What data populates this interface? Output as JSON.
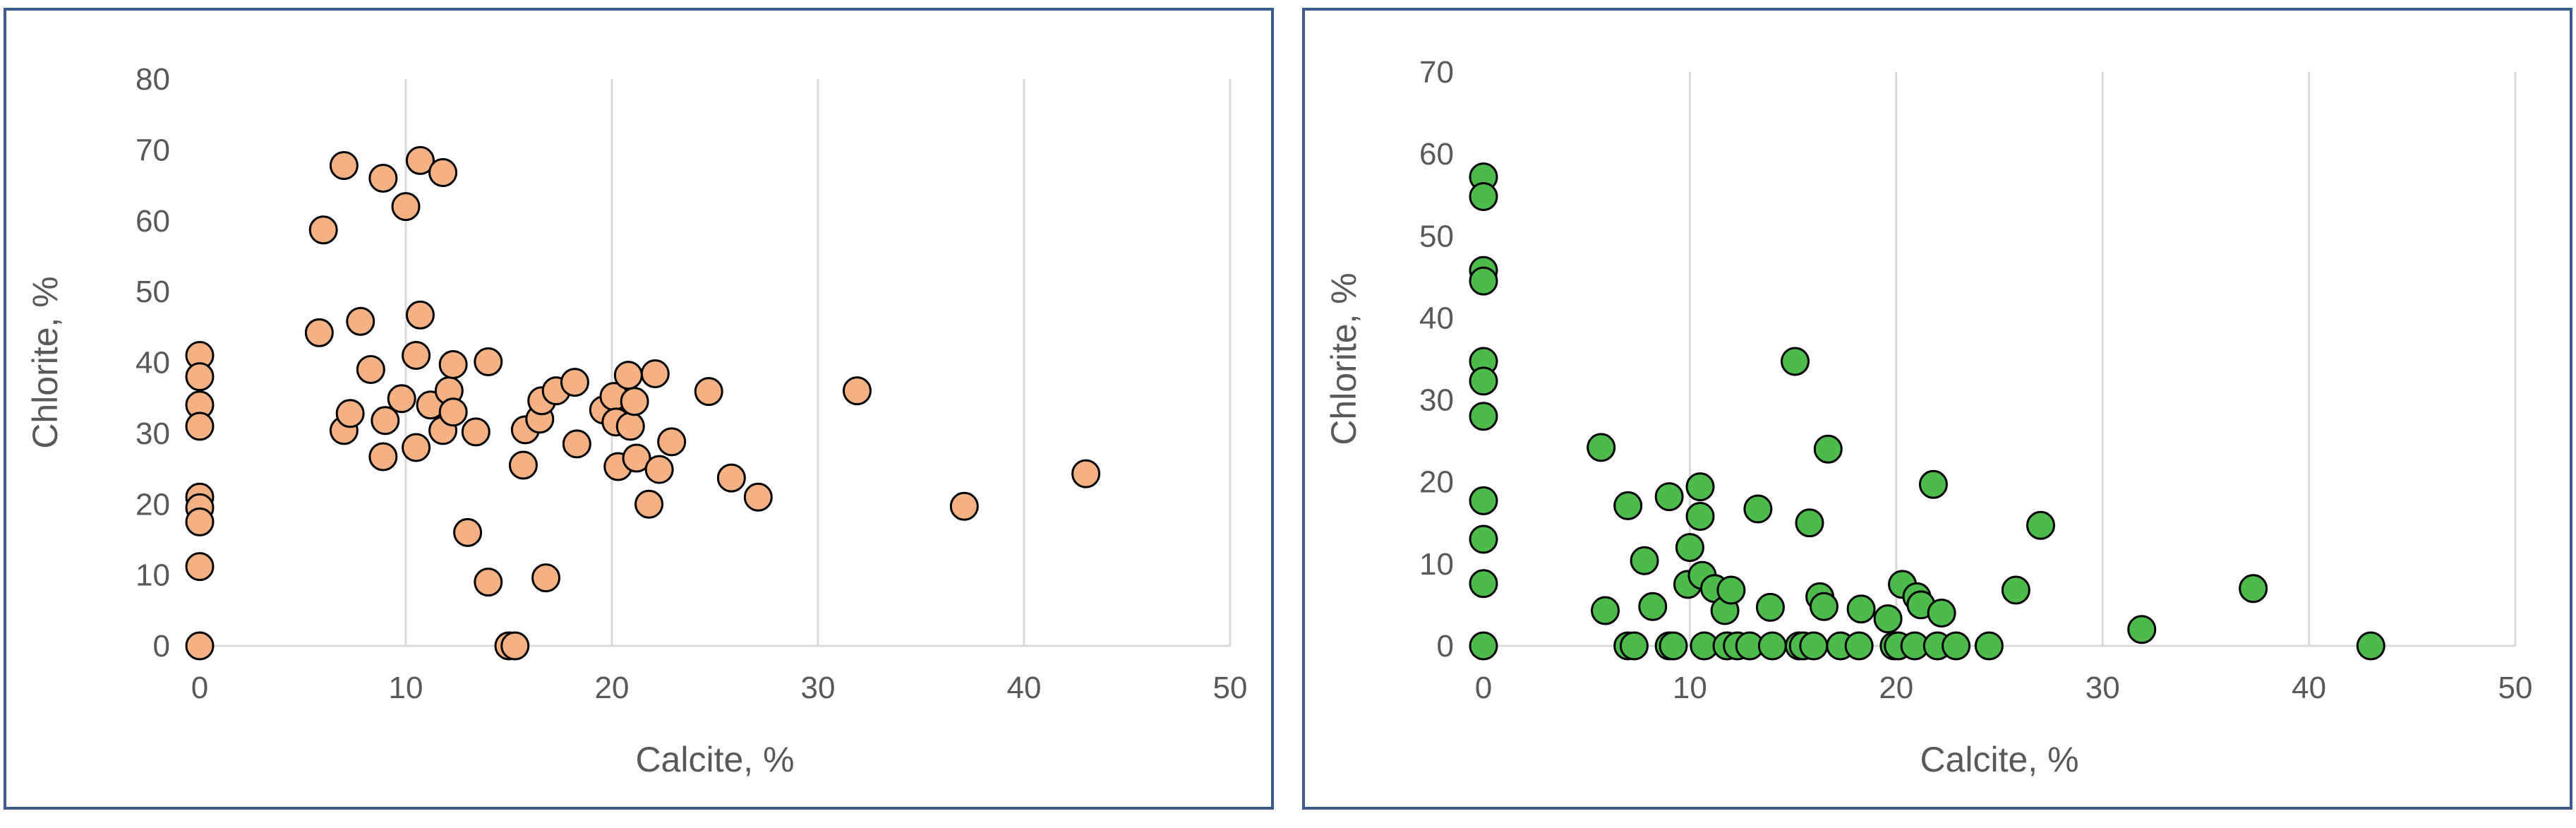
{
  "chart_data": [
    {
      "type": "scatter",
      "xlabel": "Calcite, %",
      "ylabel": "Chlorite, %",
      "xlim": [
        0,
        50
      ],
      "ylim": [
        0,
        80
      ],
      "xticks": [
        0,
        10,
        20,
        30,
        40,
        50
      ],
      "yticks": [
        0,
        10,
        20,
        30,
        40,
        50,
        60,
        70,
        80
      ],
      "grid": "vertical",
      "marker_color": "#f4b183",
      "series": [
        {
          "points": [
            [
              0,
              41
            ],
            [
              0,
              38
            ],
            [
              0,
              34
            ],
            [
              0,
              31
            ],
            [
              0,
              21
            ],
            [
              0,
              19.5
            ],
            [
              0,
              17.5
            ],
            [
              0,
              11.2
            ],
            [
              0,
              0
            ],
            [
              5.8,
              44.2
            ],
            [
              6,
              58.7
            ],
            [
              7,
              67.8
            ],
            [
              7,
              30.4
            ],
            [
              7.3,
              32.8
            ],
            [
              7.8,
              45.8
            ],
            [
              8.3,
              39
            ],
            [
              8.9,
              66
            ],
            [
              8.9,
              26.7
            ],
            [
              9,
              31.8
            ],
            [
              9.8,
              34.9
            ],
            [
              10,
              62
            ],
            [
              10.5,
              28
            ],
            [
              10.5,
              41
            ],
            [
              10.7,
              68.5
            ],
            [
              10.7,
              46.7
            ],
            [
              11.2,
              34
            ],
            [
              11.8,
              30.4
            ],
            [
              11.8,
              66.8
            ],
            [
              12.1,
              36
            ],
            [
              12.3,
              39.7
            ],
            [
              12.3,
              33
            ],
            [
              13,
              16
            ],
            [
              13.4,
              30.2
            ],
            [
              14,
              40.1
            ],
            [
              14,
              9
            ],
            [
              15,
              0
            ],
            [
              15.3,
              0
            ],
            [
              15.7,
              25.5
            ],
            [
              15.8,
              30.5
            ],
            [
              16.5,
              32
            ],
            [
              16.6,
              34.6
            ],
            [
              16.8,
              9.6
            ],
            [
              17.3,
              36
            ],
            [
              18.2,
              37.2
            ],
            [
              18.3,
              28.5
            ],
            [
              19.6,
              33.3
            ],
            [
              20.1,
              35.2
            ],
            [
              20.2,
              31.6
            ],
            [
              20.3,
              25.3
            ],
            [
              20.8,
              38.2
            ],
            [
              20.9,
              31
            ],
            [
              21.1,
              34.5
            ],
            [
              21.2,
              26.5
            ],
            [
              21.8,
              20
            ],
            [
              22.1,
              38.4
            ],
            [
              22.3,
              24.9
            ],
            [
              22.9,
              28.8
            ],
            [
              24.7,
              35.9
            ],
            [
              25.8,
              23.7
            ],
            [
              27.1,
              21
            ],
            [
              31.9,
              36
            ],
            [
              37.1,
              19.7
            ],
            [
              43,
              24.3
            ]
          ]
        }
      ]
    },
    {
      "type": "scatter",
      "xlabel": "Calcite, %",
      "ylabel": "Chlorite, %",
      "xlim": [
        0,
        50
      ],
      "ylim": [
        0,
        70
      ],
      "xticks": [
        0,
        10,
        20,
        30,
        40,
        50
      ],
      "yticks": [
        0,
        10,
        20,
        30,
        40,
        50,
        60,
        70
      ],
      "grid": "vertical",
      "marker_color": "#4cbb4c",
      "series": [
        {
          "points": [
            [
              0,
              57.2
            ],
            [
              0,
              54.8
            ],
            [
              0,
              45.8
            ],
            [
              0,
              44.5
            ],
            [
              0,
              34.7
            ],
            [
              0,
              32.3
            ],
            [
              0,
              28
            ],
            [
              0,
              17.7
            ],
            [
              0,
              13
            ],
            [
              0,
              7.6
            ],
            [
              0,
              0
            ],
            [
              5.7,
              24.2
            ],
            [
              5.9,
              4.3
            ],
            [
              7,
              17.1
            ],
            [
              7,
              0
            ],
            [
              7.3,
              0
            ],
            [
              7.8,
              10.4
            ],
            [
              8.2,
              4.8
            ],
            [
              9,
              18.2
            ],
            [
              9,
              0
            ],
            [
              9.2,
              0
            ],
            [
              9.9,
              7.5
            ],
            [
              10,
              12
            ],
            [
              10.5,
              19.4
            ],
            [
              10.5,
              15.8
            ],
            [
              10.6,
              8.6
            ],
            [
              10.7,
              0
            ],
            [
              11.2,
              7
            ],
            [
              11.7,
              4.3
            ],
            [
              11.8,
              0
            ],
            [
              12,
              6.8
            ],
            [
              12.3,
              0
            ],
            [
              12.9,
              0
            ],
            [
              13.3,
              16.7
            ],
            [
              13.9,
              4.7
            ],
            [
              14,
              0
            ],
            [
              15.1,
              34.7
            ],
            [
              15.3,
              0
            ],
            [
              15.5,
              0
            ],
            [
              15.8,
              15
            ],
            [
              16,
              0
            ],
            [
              16.3,
              6
            ],
            [
              16.5,
              4.8
            ],
            [
              16.7,
              24
            ],
            [
              17.3,
              0
            ],
            [
              18.2,
              0
            ],
            [
              18.3,
              4.5
            ],
            [
              19.6,
              3.3
            ],
            [
              19.9,
              0
            ],
            [
              20.1,
              0
            ],
            [
              20.3,
              7.5
            ],
            [
              20.9,
              0
            ],
            [
              21,
              6
            ],
            [
              21.2,
              5
            ],
            [
              21.8,
              19.7
            ],
            [
              22,
              0
            ],
            [
              22.2,
              4
            ],
            [
              22.9,
              0
            ],
            [
              24.5,
              0
            ],
            [
              25.8,
              6.8
            ],
            [
              27,
              14.7
            ],
            [
              31.9,
              2
            ],
            [
              37.3,
              7
            ],
            [
              43,
              0
            ]
          ]
        }
      ]
    }
  ]
}
